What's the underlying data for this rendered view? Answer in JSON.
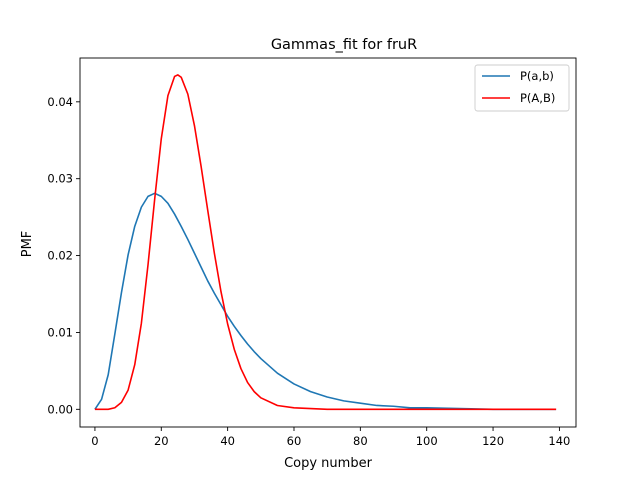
{
  "chart_data": {
    "type": "line",
    "title": "Gammas_fit for fruR",
    "xlabel": "Copy number",
    "ylabel": "PMF",
    "xlim": [
      -4.5,
      145
    ],
    "ylim": [
      -0.0023,
      0.0457
    ],
    "xticks": [
      0,
      20,
      40,
      60,
      80,
      100,
      120,
      140
    ],
    "xtick_labels": [
      "0",
      "20",
      "40",
      "60",
      "80",
      "100",
      "120",
      "140"
    ],
    "yticks": [
      0.0,
      0.01,
      0.02,
      0.03,
      0.04
    ],
    "ytick_labels": [
      "0.00",
      "0.01",
      "0.02",
      "0.03",
      "0.04"
    ],
    "grid": false,
    "legend_position": "top-right",
    "series": [
      {
        "name": "P(a,b)",
        "color": "#1f77b4",
        "x": [
          0,
          2,
          4,
          6,
          8,
          10,
          12,
          14,
          16,
          18,
          20,
          22,
          24,
          26,
          28,
          30,
          32,
          34,
          36,
          38,
          40,
          42,
          44,
          46,
          48,
          50,
          55,
          60,
          65,
          70,
          75,
          80,
          85,
          90,
          95,
          100,
          110,
          120,
          130,
          139
        ],
        "y": [
          0.0,
          0.0013,
          0.0045,
          0.0098,
          0.0152,
          0.0201,
          0.0238,
          0.0263,
          0.0277,
          0.0281,
          0.0277,
          0.0268,
          0.0254,
          0.0238,
          0.0221,
          0.0203,
          0.0185,
          0.0167,
          0.0151,
          0.0136,
          0.0121,
          0.0108,
          0.0096,
          0.0085,
          0.0075,
          0.0066,
          0.0047,
          0.0033,
          0.0023,
          0.0016,
          0.0011,
          0.0008,
          0.0005,
          0.0004,
          0.0002,
          0.0002,
          0.0001,
          0.0,
          0.0,
          0.0
        ]
      },
      {
        "name": "P(A,B)",
        "color": "#ff0000",
        "x": [
          0,
          2,
          4,
          6,
          8,
          10,
          12,
          14,
          16,
          18,
          20,
          22,
          24,
          25,
          26,
          28,
          30,
          32,
          34,
          36,
          38,
          40,
          42,
          44,
          46,
          48,
          50,
          55,
          60,
          65,
          70,
          80,
          100,
          120,
          139
        ],
        "y": [
          0.0,
          0.0,
          0.0,
          0.0002,
          0.0009,
          0.0025,
          0.0058,
          0.0112,
          0.0188,
          0.0273,
          0.0352,
          0.0408,
          0.0433,
          0.0435,
          0.0432,
          0.041,
          0.0369,
          0.0316,
          0.0259,
          0.0203,
          0.0153,
          0.0111,
          0.0078,
          0.0053,
          0.0035,
          0.0023,
          0.0015,
          0.0005,
          0.0002,
          0.0001,
          0.0,
          0.0,
          0.0,
          0.0,
          0.0
        ]
      }
    ]
  }
}
